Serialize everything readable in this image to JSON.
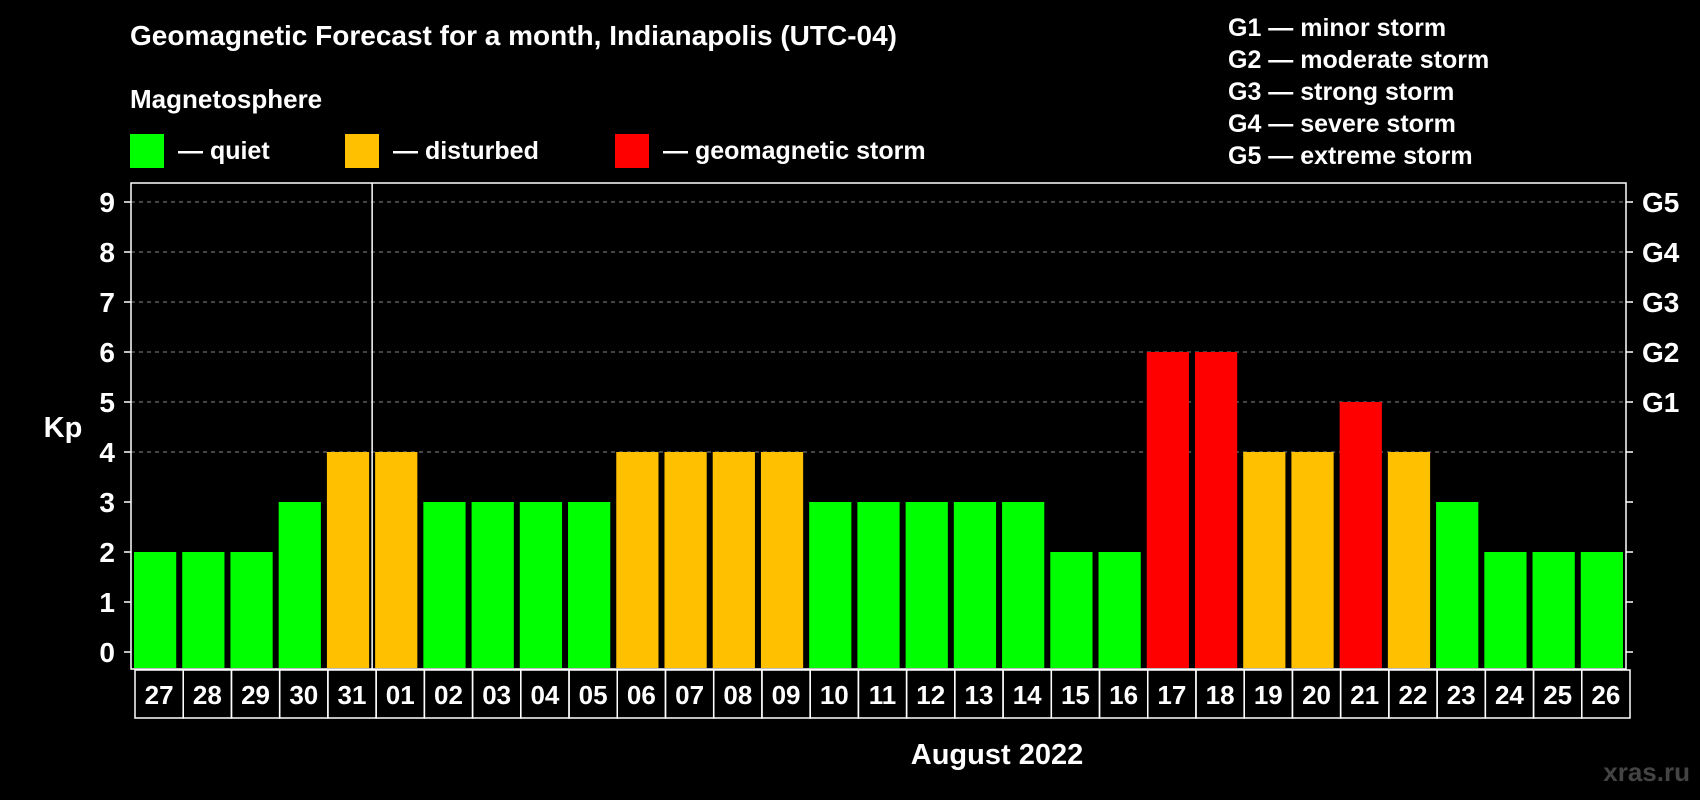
{
  "header": {
    "title": "Geomagnetic Forecast for a month, Indianapolis (UTC-04)",
    "magnetosphere_title": "Magnetosphere"
  },
  "legend": [
    {
      "label": "— quiet",
      "color": "#00ff00"
    },
    {
      "label": "— disturbed",
      "color": "#ffc000"
    },
    {
      "label": "— geomagnetic storm",
      "color": "#ff0000"
    }
  ],
  "g_scale_legend": [
    "G1 — minor storm",
    "G2 — moderate storm",
    "G3 — strong storm",
    "G4 — severe storm",
    "G5 — extreme storm"
  ],
  "watermark": "xras.ru",
  "chart_data": {
    "type": "bar",
    "title": "Geomagnetic Forecast for a month, Indianapolis (UTC-04)",
    "ylabel": "Kp",
    "xlabel": "August 2022",
    "ylim": [
      0,
      9
    ],
    "yticks": [
      "0",
      "1",
      "2",
      "3",
      "4",
      "5",
      "6",
      "7",
      "8",
      "9"
    ],
    "right_axis_labels": [
      {
        "kp": 5,
        "label": "G1"
      },
      {
        "kp": 6,
        "label": "G2"
      },
      {
        "kp": 7,
        "label": "G3"
      },
      {
        "kp": 8,
        "label": "G4"
      },
      {
        "kp": 9,
        "label": "G5"
      }
    ],
    "month_separator_after_index": 4,
    "categories": [
      "27",
      "28",
      "29",
      "30",
      "31",
      "01",
      "02",
      "03",
      "04",
      "05",
      "06",
      "07",
      "08",
      "09",
      "10",
      "11",
      "12",
      "13",
      "14",
      "15",
      "16",
      "17",
      "18",
      "19",
      "20",
      "21",
      "22",
      "23",
      "24",
      "25",
      "26"
    ],
    "values": [
      2,
      2,
      2,
      3,
      4,
      4,
      3,
      3,
      3,
      3,
      4,
      4,
      4,
      4,
      3,
      3,
      3,
      3,
      3,
      2,
      2,
      6,
      6,
      4,
      4,
      5,
      4,
      3,
      2,
      2,
      2
    ],
    "colors": {
      "quiet": "#00ff00",
      "disturbed": "#ffc000",
      "storm": "#ff0000"
    },
    "thresholds": {
      "quiet_max": 3,
      "disturbed_max": 4
    },
    "grid": true
  }
}
